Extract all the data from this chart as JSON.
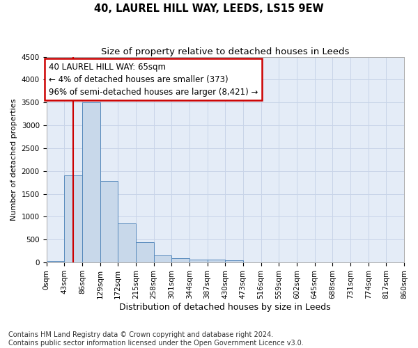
{
  "title": "40, LAUREL HILL WAY, LEEDS, LS15 9EW",
  "subtitle": "Size of property relative to detached houses in Leeds",
  "xlabel": "Distribution of detached houses by size in Leeds",
  "ylabel": "Number of detached properties",
  "bar_edges": [
    0,
    43,
    86,
    129,
    172,
    215,
    258,
    301,
    344,
    387,
    430,
    473,
    516,
    559,
    602,
    645,
    688,
    731,
    774,
    817,
    860
  ],
  "bar_heights": [
    30,
    1900,
    3500,
    1780,
    850,
    450,
    160,
    100,
    70,
    55,
    50,
    0,
    0,
    0,
    0,
    0,
    0,
    0,
    0,
    0
  ],
  "bar_color": "#c8d8ea",
  "bar_edge_color": "#5588bb",
  "property_size": 65,
  "vline_color": "#cc0000",
  "annotation_line1": "40 LAUREL HILL WAY: 65sqm",
  "annotation_line2": "← 4% of detached houses are smaller (373)",
  "annotation_line3": "96% of semi-detached houses are larger (8,421) →",
  "annotation_box_color": "#ffffff",
  "annotation_box_edge_color": "#cc0000",
  "ylim": [
    0,
    4500
  ],
  "yticks": [
    0,
    500,
    1000,
    1500,
    2000,
    2500,
    3000,
    3500,
    4000,
    4500
  ],
  "xtick_labels": [
    "0sqm",
    "43sqm",
    "86sqm",
    "129sqm",
    "172sqm",
    "215sqm",
    "258sqm",
    "301sqm",
    "344sqm",
    "387sqm",
    "430sqm",
    "473sqm",
    "516sqm",
    "559sqm",
    "602sqm",
    "645sqm",
    "688sqm",
    "731sqm",
    "774sqm",
    "817sqm",
    "860sqm"
  ],
  "grid_color": "#c8d4e8",
  "bg_color": "#e4ecf7",
  "footer_line1": "Contains HM Land Registry data © Crown copyright and database right 2024.",
  "footer_line2": "Contains public sector information licensed under the Open Government Licence v3.0.",
  "title_fontsize": 10.5,
  "subtitle_fontsize": 9.5,
  "xlabel_fontsize": 9,
  "ylabel_fontsize": 8,
  "tick_fontsize": 7.5,
  "footer_fontsize": 7
}
